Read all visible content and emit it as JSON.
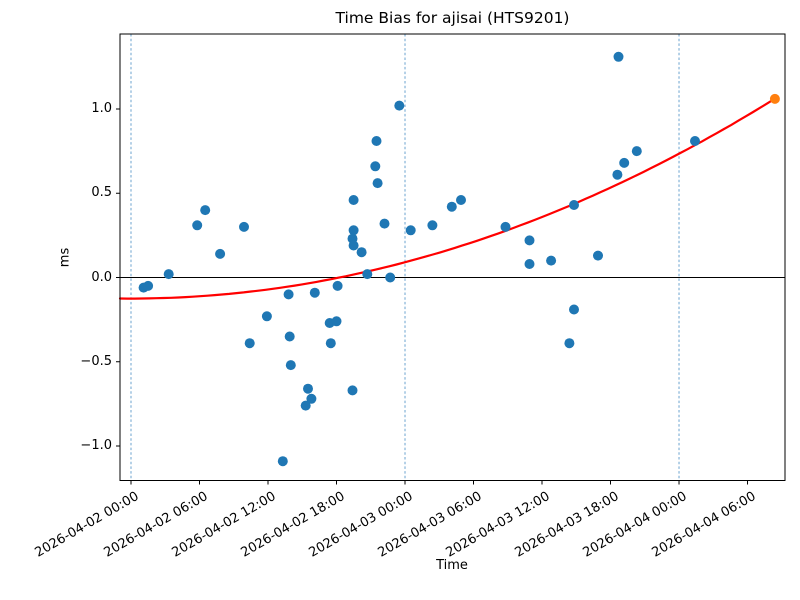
{
  "figure": {
    "title": "Time Bias for ajisai (HTS9201)",
    "background_color": "#ffffff"
  },
  "chart_data": {
    "type": "scatter",
    "title": "Time Bias for ajisai (HTS9201)",
    "xlabel": "Time",
    "ylabel": "ms",
    "x_axis": {
      "unit": "hours since 2026-04-02 00:00",
      "lim": [
        -0.96,
        57.28
      ],
      "ticks": [
        {
          "t": 0,
          "label": "2026-04-02 00:00"
        },
        {
          "t": 6,
          "label": "2026-04-02 06:00"
        },
        {
          "t": 12,
          "label": "2026-04-02 12:00"
        },
        {
          "t": 18,
          "label": "2026-04-02 18:00"
        },
        {
          "t": 24,
          "label": "2026-04-03 00:00"
        },
        {
          "t": 30,
          "label": "2026-04-03 06:00"
        },
        {
          "t": 36,
          "label": "2026-04-03 12:00"
        },
        {
          "t": 42,
          "label": "2026-04-03 18:00"
        },
        {
          "t": 48,
          "label": "2026-04-04 00:00"
        },
        {
          "t": 54,
          "label": "2026-04-04 06:00"
        }
      ]
    },
    "y_axis": {
      "lim": [
        -1.21,
        1.45
      ],
      "ticks": [
        {
          "v": 1.0,
          "label": "1.0"
        },
        {
          "v": 0.5,
          "label": "0.5"
        },
        {
          "v": 0.0,
          "label": "0.0"
        },
        {
          "v": -0.5,
          "label": "−0.5"
        },
        {
          "v": -1.0,
          "label": "−1.0"
        }
      ]
    },
    "zero_line": {
      "v": 0.0,
      "color": "#000000"
    },
    "day_boundaries": {
      "t": [
        0,
        24,
        48
      ],
      "color": "#6ba3cf",
      "style": "dashed"
    },
    "series": [
      {
        "name": "time-bias-observations",
        "color": "#1f77b4",
        "marker": "circle",
        "points": [
          [
            1.1,
            -0.06
          ],
          [
            1.5,
            -0.05
          ],
          [
            3.3,
            0.02
          ],
          [
            5.8,
            0.31
          ],
          [
            6.5,
            0.4
          ],
          [
            7.8,
            0.14
          ],
          [
            9.9,
            0.3
          ],
          [
            10.4,
            -0.39
          ],
          [
            11.9,
            -0.23
          ],
          [
            13.3,
            -1.09
          ],
          [
            13.8,
            -0.1
          ],
          [
            13.9,
            -0.35
          ],
          [
            14.0,
            -0.52
          ],
          [
            15.3,
            -0.76
          ],
          [
            15.5,
            -0.66
          ],
          [
            15.8,
            -0.72
          ],
          [
            16.1,
            -0.09
          ],
          [
            17.4,
            -0.27
          ],
          [
            17.5,
            -0.39
          ],
          [
            18.0,
            -0.26
          ],
          [
            18.1,
            -0.05
          ],
          [
            19.4,
            -0.67
          ],
          [
            19.5,
            0.46
          ],
          [
            19.5,
            0.28
          ],
          [
            19.4,
            0.23
          ],
          [
            19.5,
            0.19
          ],
          [
            20.2,
            0.15
          ],
          [
            20.7,
            0.02
          ],
          [
            21.4,
            0.66
          ],
          [
            21.5,
            0.81
          ],
          [
            21.6,
            0.56
          ],
          [
            22.2,
            0.32
          ],
          [
            22.7,
            0.0
          ],
          [
            23.5,
            1.02
          ],
          [
            24.5,
            0.28
          ],
          [
            26.4,
            0.31
          ],
          [
            28.1,
            0.42
          ],
          [
            28.9,
            0.46
          ],
          [
            32.8,
            0.3
          ],
          [
            34.9,
            0.08
          ],
          [
            34.9,
            0.22
          ],
          [
            36.8,
            0.1
          ],
          [
            38.4,
            -0.39
          ],
          [
            38.8,
            0.43
          ],
          [
            38.8,
            -0.19
          ],
          [
            40.9,
            0.13
          ],
          [
            42.6,
            0.61
          ],
          [
            42.7,
            1.31
          ],
          [
            43.2,
            0.68
          ],
          [
            44.3,
            0.75
          ],
          [
            49.4,
            0.81
          ]
        ]
      },
      {
        "name": "extrapolated-endpoint",
        "color": "#ff7f0e",
        "marker": "circle",
        "points": [
          [
            56.4,
            1.06
          ]
        ]
      }
    ],
    "fit_curve": {
      "name": "polynomial-fit",
      "color": "#ff0000",
      "a": 0.000372,
      "b": 5e-05,
      "c": -0.125,
      "t_range": [
        -0.96,
        56.4
      ]
    }
  }
}
